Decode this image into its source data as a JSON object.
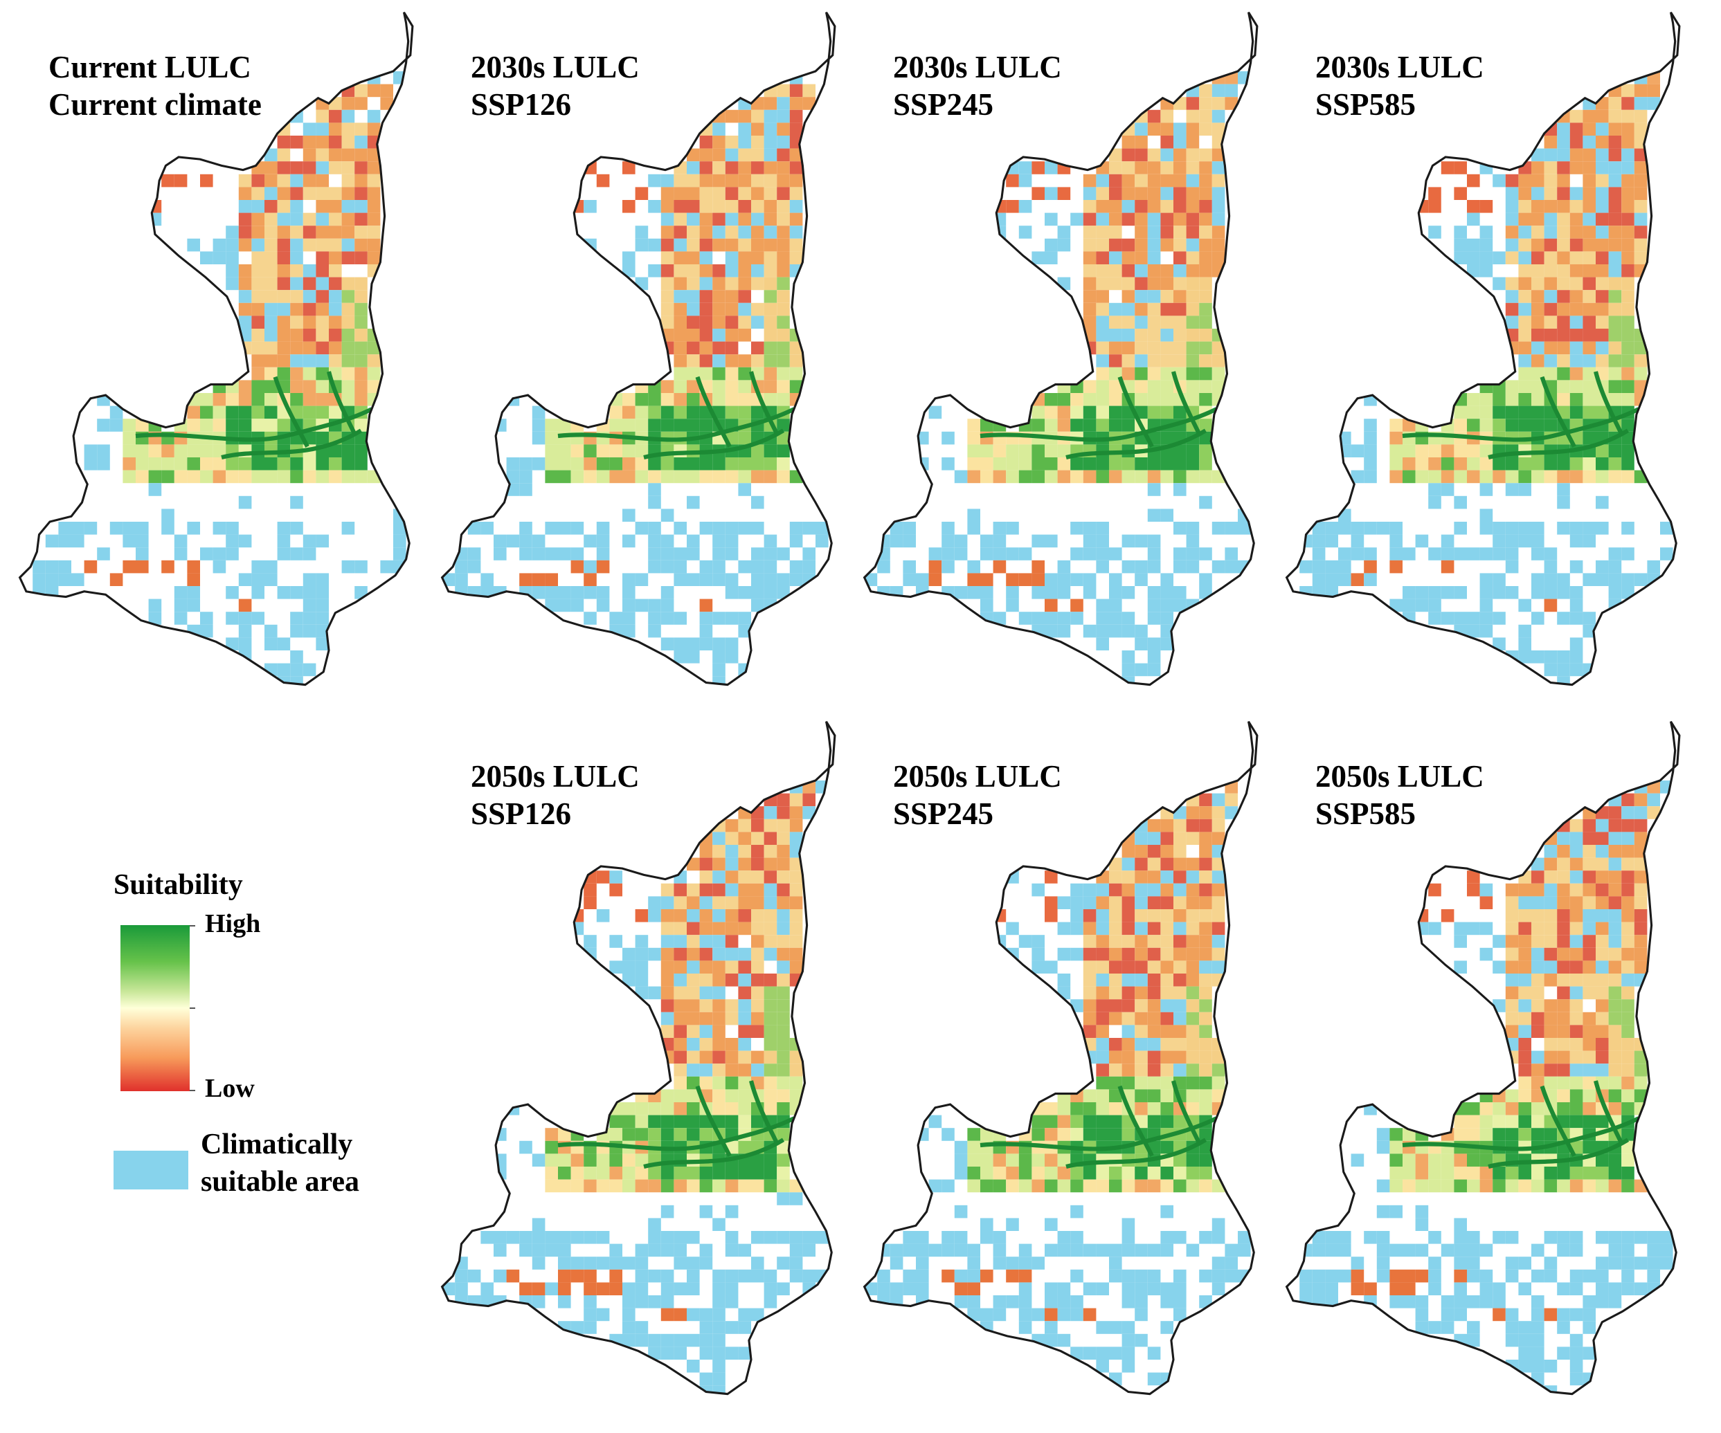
{
  "colors": {
    "high": "#1a9a3a",
    "mid": "#ffffd9",
    "low": "#e0302c",
    "climatically_suitable": "#87d3ec",
    "outline": "#1a1a1a"
  },
  "panels": [
    {
      "line1": "Current LULC",
      "line2": "Current climate",
      "variant": 0
    },
    {
      "line1": "2030s LULC",
      "line2": "SSP126",
      "variant": 1
    },
    {
      "line1": "2030s LULC",
      "line2": "SSP245",
      "variant": 2
    },
    {
      "line1": "2030s LULC",
      "line2": "SSP585",
      "variant": 3
    },
    {
      "line1": "2050s LULC",
      "line2": "SSP126",
      "variant": 4
    },
    {
      "line1": "2050s LULC",
      "line2": "SSP245",
      "variant": 5
    },
    {
      "line1": "2050s LULC",
      "line2": "SSP585",
      "variant": 6
    }
  ],
  "legend": {
    "title": "Suitability",
    "high_label": "High",
    "low_label": "Low",
    "climate_line1": "Climatically",
    "climate_line2": "suitable area"
  }
}
